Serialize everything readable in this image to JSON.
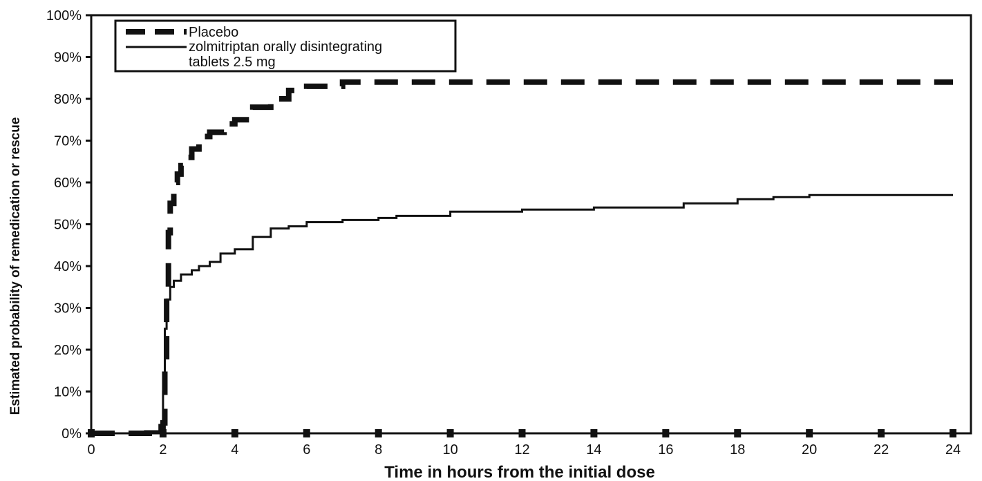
{
  "chart_data": {
    "type": "line",
    "title": "",
    "xlabel": "Time in hours from the initial dose",
    "ylabel": "Estimated probability of remedication or rescue",
    "xlim": [
      0,
      24.5
    ],
    "ylim": [
      0,
      100
    ],
    "x_ticks": [
      0,
      2,
      4,
      6,
      8,
      10,
      12,
      14,
      16,
      18,
      20,
      22,
      24
    ],
    "x_tick_labels": [
      "0",
      "2",
      "4",
      "6",
      "8",
      "10",
      "12",
      "14",
      "16",
      "18",
      "20",
      "22",
      "24"
    ],
    "y_ticks": [
      0,
      10,
      20,
      30,
      40,
      50,
      60,
      70,
      80,
      90,
      100
    ],
    "y_tick_labels": [
      "0%",
      "10%",
      "20%",
      "30%",
      "40%",
      "50%",
      "60%",
      "70%",
      "80%",
      "90%",
      "100%"
    ],
    "grid": false,
    "legend_position": "top-left",
    "legend": {
      "placebo": "Placebo",
      "zolmitriptan_line1": "zolmitriptan orally disintegrating",
      "zolmitriptan_line2": "tablets 2.5 mg"
    },
    "series": [
      {
        "name": "Placebo",
        "style": "dashed",
        "color": "#111111",
        "x": [
          0,
          1.9,
          2.0,
          2.05,
          2.1,
          2.15,
          2.2,
          2.3,
          2.4,
          2.5,
          2.6,
          2.8,
          3.0,
          3.3,
          3.7,
          4.0,
          4.5,
          5.0,
          5.5,
          6.0,
          7.0,
          8.0,
          10.0,
          14.0,
          18.0,
          22.0,
          24.0
        ],
        "y": [
          0,
          1.5,
          2.5,
          15,
          35,
          48,
          55,
          60,
          62,
          64,
          66,
          68,
          71,
          72,
          74,
          75,
          78,
          80,
          82,
          83,
          84,
          84,
          84,
          84,
          84,
          84,
          84
        ]
      },
      {
        "name": "zolmitriptan orally disintegrating tablets 2.5 mg",
        "style": "solid",
        "color": "#111111",
        "x": [
          0,
          1.5,
          1.9,
          2.0,
          2.05,
          2.1,
          2.2,
          2.3,
          2.5,
          2.8,
          3.0,
          3.3,
          3.6,
          4.0,
          4.5,
          5.0,
          5.5,
          6.0,
          7.0,
          8.0,
          8.5,
          10.0,
          12.0,
          14.0,
          16.0,
          16.5,
          18.0,
          19.0,
          20.0,
          21.0,
          24.0
        ],
        "y": [
          0,
          0.5,
          2,
          10,
          25,
          32,
          35,
          36.5,
          38,
          39,
          40,
          41,
          43,
          44,
          47,
          49,
          49.5,
          50.5,
          51,
          51.5,
          52,
          53,
          53.5,
          54,
          54,
          55,
          56,
          56.5,
          57,
          57,
          57
        ]
      }
    ]
  }
}
